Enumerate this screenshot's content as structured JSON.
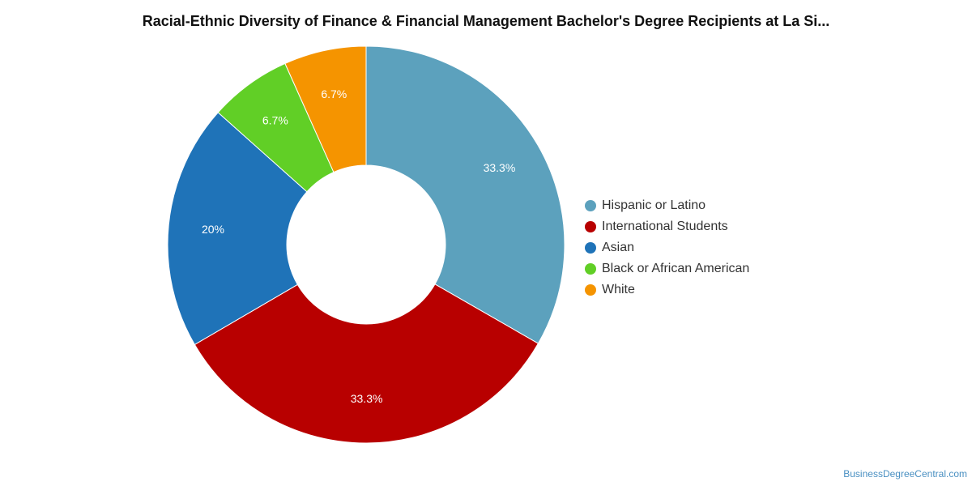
{
  "chart_data": {
    "type": "pie",
    "title": "Racial-Ethnic Diversity of Finance & Financial Management Bachelor's Degree Recipients at La Si...",
    "categories": [
      "Hispanic or Latino",
      "International Students",
      "Asian",
      "Black or African American",
      "White"
    ],
    "values": [
      33.3,
      33.3,
      20,
      6.7,
      6.7
    ],
    "labels": [
      "33.3%",
      "33.3%",
      "20%",
      "6.7%",
      "6.7%"
    ],
    "colors": [
      "#5ca1bd",
      "#b80000",
      "#1f73b8",
      "#61cf26",
      "#f59400"
    ],
    "legend_position": "right",
    "donut": true
  },
  "footer": {
    "credit": "BusinessDegreeCentral.com"
  }
}
